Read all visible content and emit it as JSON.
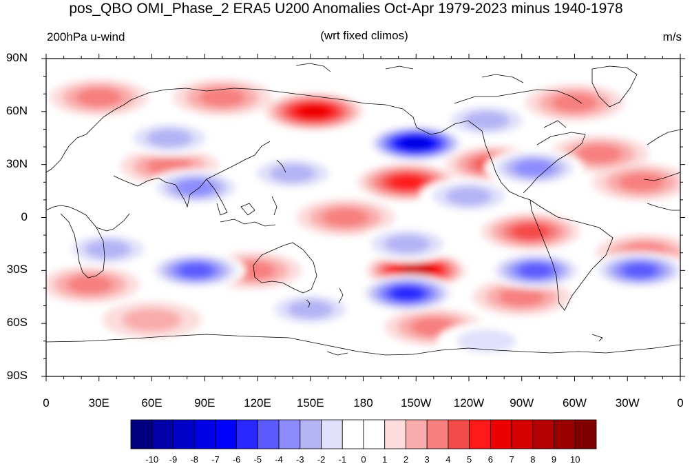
{
  "header": {
    "title": "pos_QBO OMI_Phase_2 ERA5 U200 Anomalies Oct-Apr 1979-2023 minus 1940-1978",
    "left_label": "200hPa u-wind",
    "center_label": "(wrt fixed climos)",
    "right_label": "m/s"
  },
  "axes": {
    "y_ticks": [
      "90N",
      "60N",
      "30N",
      "0",
      "30S",
      "60S",
      "90S"
    ],
    "x_ticks": [
      "0",
      "30E",
      "60E",
      "90E",
      "120E",
      "150E",
      "180",
      "150W",
      "120W",
      "90W",
      "60W",
      "30W",
      "0"
    ]
  },
  "colorbar": {
    "labels": [
      "-10",
      "-9",
      "-8",
      "-7",
      "-6",
      "-5",
      "-4",
      "-3",
      "-2",
      "-1",
      "0",
      "1",
      "2",
      "3",
      "4",
      "5",
      "6",
      "7",
      "8",
      "9",
      "10"
    ],
    "colors": [
      "#00007f",
      "#0000a8",
      "#0000c8",
      "#0000e6",
      "#0000ff",
      "#2828ff",
      "#5a5aff",
      "#8c8cff",
      "#b4b4f5",
      "#e0e0fa",
      "#ffffff",
      "#ffffff",
      "#fcdcdc",
      "#f9acac",
      "#f77f7f",
      "#f54a4a",
      "#ff1a1a",
      "#ee0000",
      "#d40000",
      "#b40000",
      "#9a0000",
      "#800000"
    ]
  },
  "map": {
    "projection": "cylindrical-equidistant",
    "lon_range": [
      0,
      360
    ],
    "lat_range": [
      -90,
      90
    ],
    "anomalies": [
      {
        "lon": 152,
        "lat": 60,
        "value": 6
      },
      {
        "lon": 30,
        "lat": 68,
        "value": 3
      },
      {
        "lon": 100,
        "lat": 68,
        "value": 3
      },
      {
        "lon": 70,
        "lat": 29,
        "value": 3
      },
      {
        "lon": 255,
        "lat": 30,
        "value": 4
      },
      {
        "lon": 205,
        "lat": 20,
        "value": 5
      },
      {
        "lon": 300,
        "lat": 65,
        "value": 3
      },
      {
        "lon": 314,
        "lat": 36,
        "value": 3
      },
      {
        "lon": 338,
        "lat": 20,
        "value": 3
      },
      {
        "lon": 275,
        "lat": -8,
        "value": 4
      },
      {
        "lon": 170,
        "lat": 0,
        "value": 3
      },
      {
        "lon": 210,
        "lat": -30,
        "value": 7
      },
      {
        "lon": 25,
        "lat": -38,
        "value": 3
      },
      {
        "lon": 117,
        "lat": -30,
        "value": 3
      },
      {
        "lon": 270,
        "lat": -45,
        "value": 3
      },
      {
        "lon": 220,
        "lat": -62,
        "value": 3
      },
      {
        "lon": 60,
        "lat": -58,
        "value": 2
      },
      {
        "lon": 340,
        "lat": -20,
        "value": 3
      },
      {
        "lon": 210,
        "lat": 42,
        "value": -8
      },
      {
        "lon": 278,
        "lat": -30,
        "value": -5
      },
      {
        "lon": 205,
        "lat": -43,
        "value": -6
      },
      {
        "lon": 337,
        "lat": -30,
        "value": -5
      },
      {
        "lon": 85,
        "lat": 17,
        "value": -4
      },
      {
        "lon": 85,
        "lat": -30,
        "value": -5
      },
      {
        "lon": 277,
        "lat": 28,
        "value": -4
      },
      {
        "lon": 250,
        "lat": 55,
        "value": -3
      },
      {
        "lon": 70,
        "lat": 45,
        "value": -3
      },
      {
        "lon": 240,
        "lat": 12,
        "value": -3
      },
      {
        "lon": 205,
        "lat": -15,
        "value": -3
      },
      {
        "lon": 140,
        "lat": 25,
        "value": -3
      },
      {
        "lon": 150,
        "lat": -52,
        "value": -3
      },
      {
        "lon": 250,
        "lat": -70,
        "value": -2
      },
      {
        "lon": 35,
        "lat": -18,
        "value": -3
      }
    ]
  }
}
